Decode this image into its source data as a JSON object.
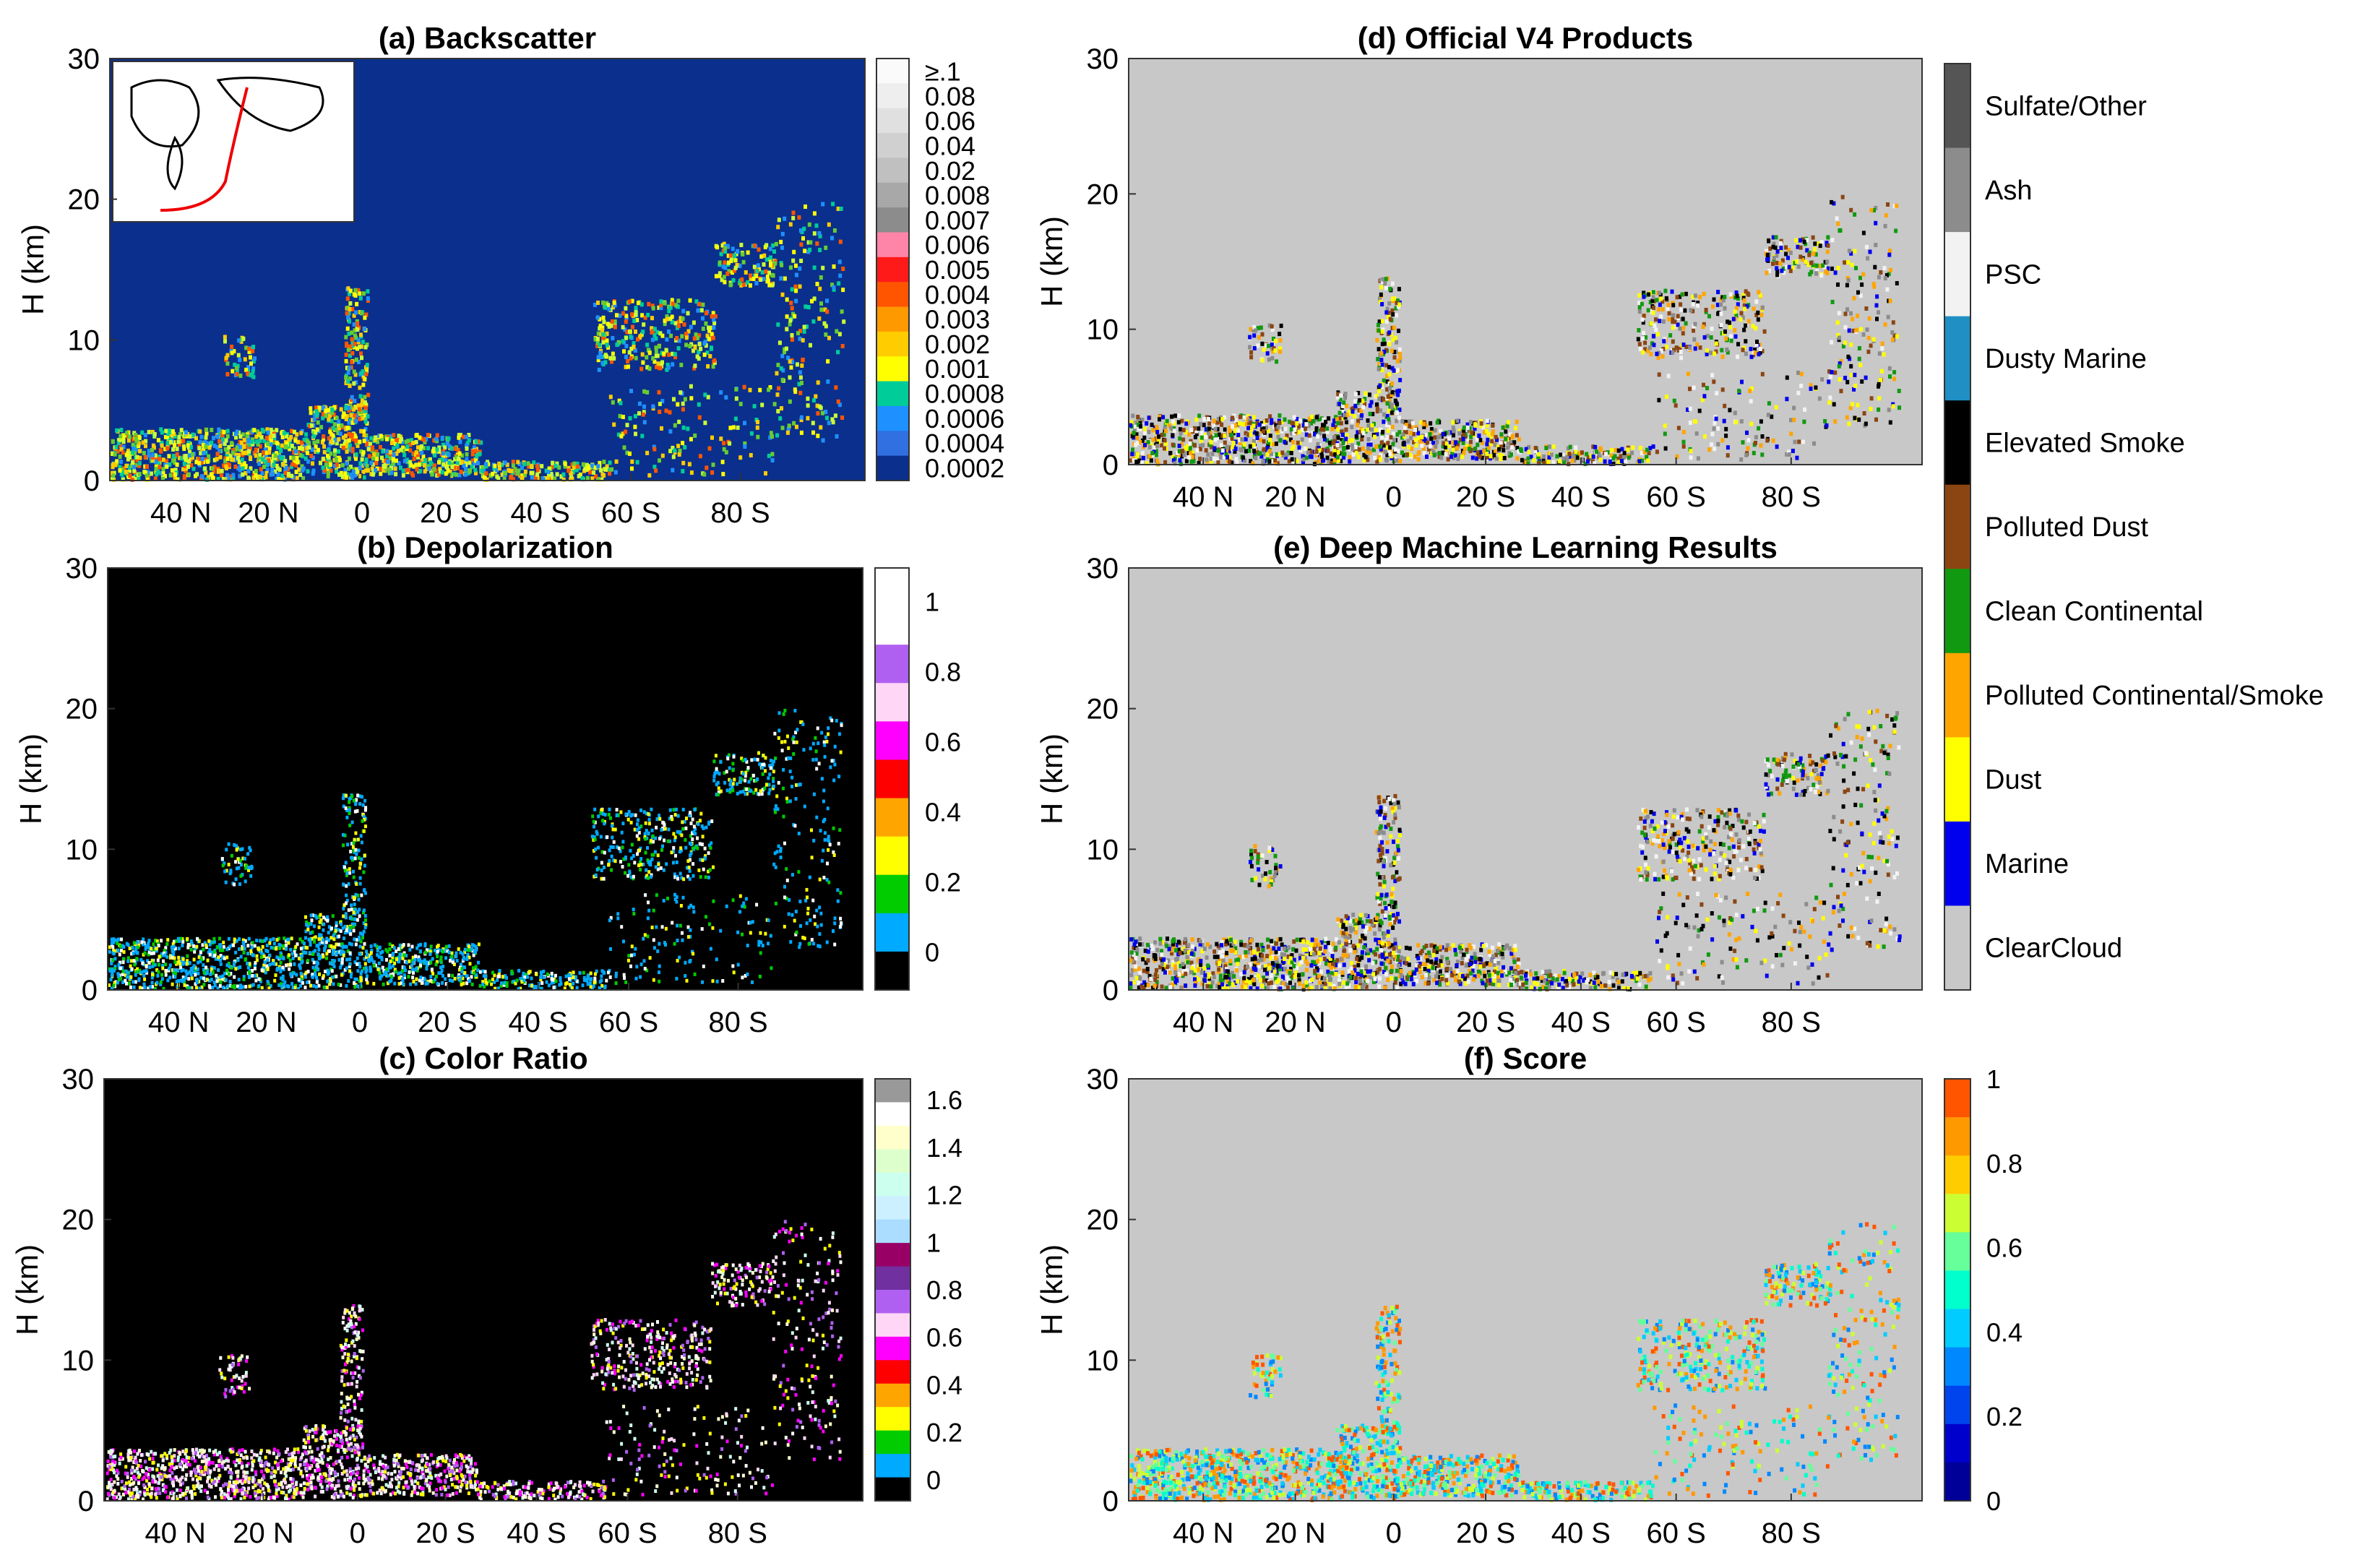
{
  "figure": {
    "ylabel": "H (km)",
    "y_ticks": [
      "0",
      "10",
      "20",
      "30"
    ],
    "x_ticks": [
      "40 N",
      "20 N",
      "0",
      "20 S",
      "40 S",
      "60 S",
      "80 S"
    ]
  },
  "chart_data": [
    {
      "id": "a",
      "type": "heatmap",
      "title": "(a) Backscatter",
      "ylabel": "H (km)",
      "x_tick_labels": [
        "40 N",
        "20 N",
        "0",
        "20 S",
        "40 S",
        "60 S",
        "80 S"
      ],
      "y_tick_labels": [
        "0",
        "10",
        "20",
        "30"
      ],
      "ylim": [
        0,
        30
      ],
      "background_color": "#0a2f8c",
      "inset_map": true,
      "colorbar": {
        "labels": [
          "≥.1",
          "0.08",
          "0.06",
          "0.04",
          "0.02",
          "0.008",
          "0.007",
          "0.006",
          "0.005",
          "0.004",
          "0.003",
          "0.002",
          "0.001",
          "0.0008",
          "0.0006",
          "0.0004",
          "0.0002"
        ],
        "colors": [
          "#fafafa",
          "#eeeeee",
          "#e0e0e0",
          "#d0d0d0",
          "#c0c0c0",
          "#a8a8a8",
          "#8c8c8c",
          "#ff85a8",
          "#ff1a1a",
          "#ff5500",
          "#ff9900",
          "#ffcc00",
          "#ffff00",
          "#00cc99",
          "#1e90ff",
          "#3070e0",
          "#0a2f8c"
        ]
      }
    },
    {
      "id": "b",
      "type": "heatmap",
      "title": "(b) Depolarization",
      "ylabel": "H (km)",
      "x_tick_labels": [
        "40 N",
        "20 N",
        "0",
        "20 S",
        "40 S",
        "60 S",
        "80 S"
      ],
      "y_tick_labels": [
        "0",
        "10",
        "20",
        "30"
      ],
      "ylim": [
        0,
        30
      ],
      "background_color": "#000000",
      "colorbar": {
        "labels": [
          "1",
          "0.8",
          "0.6",
          "0.4",
          "0.2",
          "0"
        ],
        "colors": [
          "#ffffff",
          "#ffffff",
          "#b060f0",
          "#ffd6f5",
          "#ff00ff",
          "#ff0000",
          "#ffa500",
          "#ffff00",
          "#00cc00",
          "#00aaff",
          "#000000"
        ]
      }
    },
    {
      "id": "c",
      "type": "heatmap",
      "title": "(c) Color Ratio",
      "ylabel": "H (km)",
      "x_tick_labels": [
        "40 N",
        "20 N",
        "0",
        "20 S",
        "40 S",
        "60 S",
        "80 S"
      ],
      "y_tick_labels": [
        "0",
        "10",
        "20",
        "30"
      ],
      "ylim": [
        0,
        30
      ],
      "background_color": "#000000",
      "colorbar": {
        "labels": [
          "1.6",
          "1.4",
          "1.2",
          "1",
          "0.8",
          "0.6",
          "0.4",
          "0.2",
          "0"
        ],
        "colors": [
          "#999999",
          "#ffffff",
          "#ffffcc",
          "#ddffcc",
          "#ccffee",
          "#ccf0ff",
          "#aaddff",
          "#990066",
          "#7030a0",
          "#b060f0",
          "#ffd6f5",
          "#ff00ff",
          "#ff0000",
          "#ffa500",
          "#ffff00",
          "#00cc00",
          "#00aaff",
          "#000000"
        ]
      }
    },
    {
      "id": "d",
      "type": "heatmap",
      "title": "(d) Official V4 Products",
      "ylabel": "H (km)",
      "x_tick_labels": [
        "40 N",
        "20 N",
        "0",
        "20 S",
        "40 S",
        "60 S",
        "80 S"
      ],
      "y_tick_labels": [
        "0",
        "10",
        "20",
        "30"
      ],
      "ylim": [
        0,
        30
      ],
      "background_color": "#c8c8c8"
    },
    {
      "id": "e",
      "type": "heatmap",
      "title": "(e) Deep Machine Learning Results",
      "ylabel": "H (km)",
      "x_tick_labels": [
        "40 N",
        "20 N",
        "0",
        "20 S",
        "40 S",
        "60 S",
        "80 S"
      ],
      "y_tick_labels": [
        "0",
        "10",
        "20",
        "30"
      ],
      "ylim": [
        0,
        30
      ],
      "background_color": "#c8c8c8"
    },
    {
      "id": "f",
      "type": "heatmap",
      "title": "(f) Score",
      "ylabel": "H (km)",
      "x_tick_labels": [
        "40 N",
        "20 N",
        "0",
        "20 S",
        "40 S",
        "60 S",
        "80 S"
      ],
      "y_tick_labels": [
        "0",
        "10",
        "20",
        "30"
      ],
      "ylim": [
        0,
        30
      ],
      "background_color": "#c8c8c8",
      "colorbar": {
        "labels": [
          "1",
          "0.8",
          "0.6",
          "0.4",
          "0.2",
          "0"
        ],
        "colors": [
          "#ff5500",
          "#ff9900",
          "#ffcc00",
          "#ccff33",
          "#66ff99",
          "#00ffcc",
          "#00ccff",
          "#0088ff",
          "#0044ee",
          "#0000cc",
          "#000099"
        ]
      }
    }
  ],
  "aerosol_legend": {
    "categories": [
      "Sulfate/Other",
      "Ash",
      "PSC",
      "Dusty Marine",
      "Elevated Smoke",
      "Polluted Dust",
      "Clean Continental",
      "Polluted Continental/Smoke",
      "Dust",
      "Marine",
      "ClearCloud"
    ],
    "colors": [
      "#555555",
      "#8c8c8c",
      "#f2f2f2",
      "#1f8fc4",
      "#000000",
      "#8b4513",
      "#119911",
      "#ffa500",
      "#ffff00",
      "#0000ee",
      "#c8c8c8"
    ]
  }
}
